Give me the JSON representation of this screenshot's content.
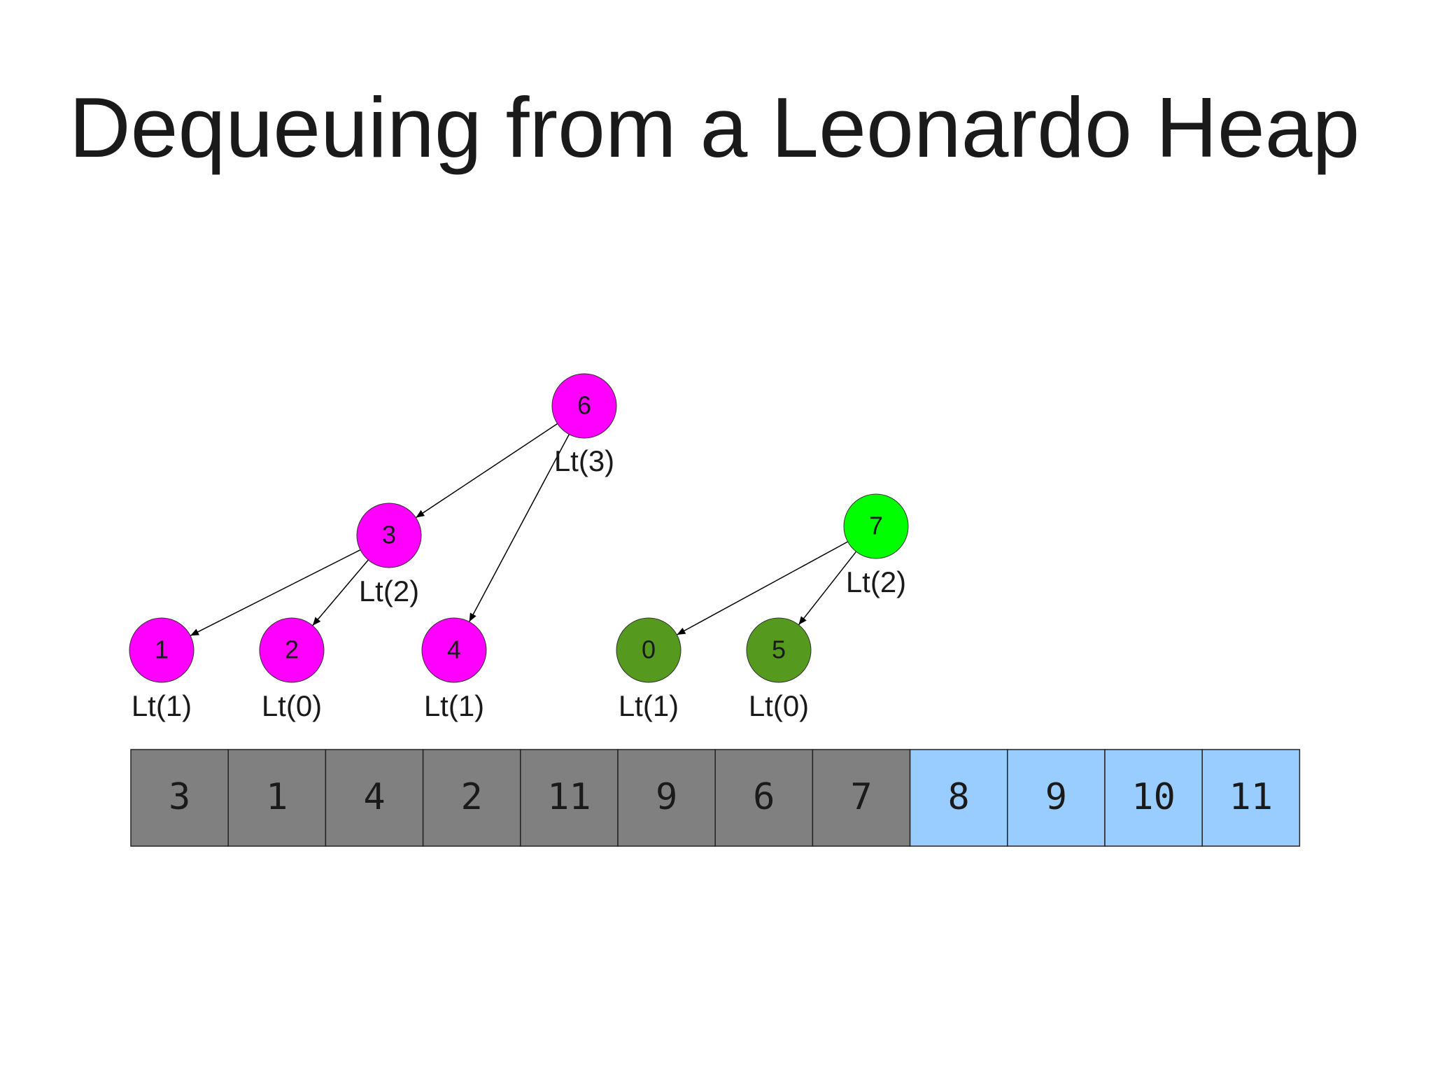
{
  "title": "Dequeuing from a Leonardo Heap",
  "nodes": [
    {
      "label": "6",
      "order": "Lt(3)"
    },
    {
      "label": "3",
      "order": "Lt(2)"
    },
    {
      "label": "1",
      "order": "Lt(1)"
    },
    {
      "label": "2",
      "order": "Lt(0)"
    },
    {
      "label": "4",
      "order": "Lt(1)"
    },
    {
      "label": "7",
      "order": "Lt(2)"
    },
    {
      "label": "0",
      "order": "Lt(1)"
    },
    {
      "label": "5",
      "order": "Lt(0)"
    }
  ],
  "array": [
    "3",
    "1",
    "4",
    "2",
    "11",
    "9",
    "6",
    "7",
    "8",
    "9",
    "10",
    "11"
  ]
}
